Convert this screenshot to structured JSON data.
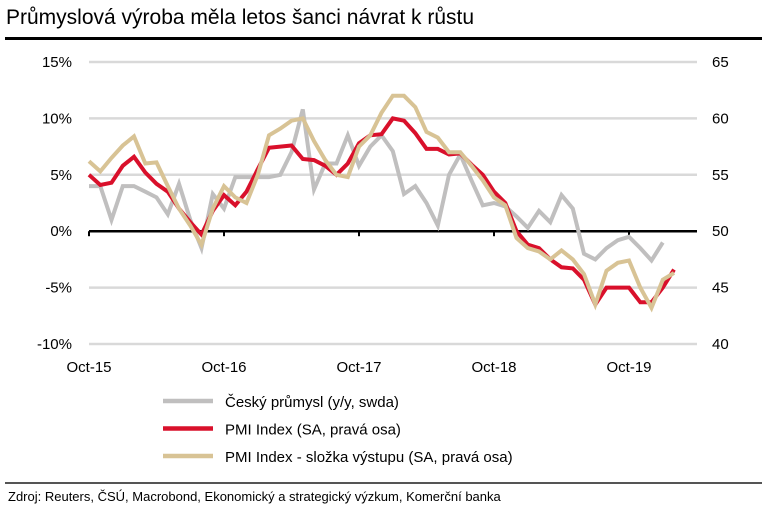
{
  "chart_data": {
    "type": "line",
    "title": "Průmyslová výroba měla letos šanci návrat k růstu",
    "x_start": "Oct-15",
    "x_frequency": "monthly",
    "x_tick_labels": [
      "Oct-15",
      "Oct-16",
      "Oct-17",
      "Oct-18",
      "Oct-19"
    ],
    "y_left": {
      "ticks": [
        15,
        10,
        5,
        0,
        -5,
        -10
      ],
      "tick_labels": [
        "15%",
        "10%",
        "5%",
        "0%",
        "-5%",
        "-10%"
      ],
      "range": [
        -10,
        15
      ]
    },
    "y_right": {
      "ticks": [
        65,
        60,
        55,
        50,
        45,
        40
      ],
      "tick_labels": [
        "65",
        "60",
        "55",
        "50",
        "45",
        "40"
      ],
      "range": [
        40,
        65
      ]
    },
    "grid": true,
    "legend_position": "bottom",
    "series": [
      {
        "name": "Český průmysl (y/y, swda)",
        "axis": "left",
        "color": "#c0bfbf",
        "values": [
          4.0,
          4.0,
          1.0,
          4.0,
          4.0,
          3.5,
          3.0,
          1.5,
          4.2,
          1.0,
          -1.5,
          3.3,
          2.0,
          4.8,
          4.8,
          4.8,
          4.8,
          5.0,
          7.0,
          10.8,
          3.7,
          6.0,
          6.0,
          8.5,
          5.8,
          7.5,
          8.5,
          7.1,
          3.3,
          4.0,
          2.5,
          0.5,
          5.0,
          6.8,
          4.5,
          2.3,
          2.5,
          2.2,
          1.3,
          0.3,
          1.8,
          0.8,
          3.2,
          2.0,
          -2.0,
          -2.5,
          -1.5,
          -0.8,
          -0.5,
          -1.5,
          -2.6,
          -1.0
        ]
      },
      {
        "name": "PMI Index (SA, pravá osa)",
        "axis": "right",
        "color": "#d9102b",
        "values": [
          55.0,
          54.1,
          54.3,
          55.8,
          56.6,
          55.2,
          54.2,
          53.5,
          52.0,
          50.8,
          49.7,
          51.8,
          53.2,
          52.3,
          53.5,
          55.5,
          57.4,
          57.5,
          57.6,
          56.4,
          56.3,
          55.8,
          55.0,
          56.0,
          57.8,
          58.5,
          58.6,
          60.0,
          59.8,
          58.7,
          57.3,
          57.3,
          56.8,
          56.9,
          55.9,
          55.0,
          53.5,
          52.5,
          50.0,
          48.8,
          48.5,
          47.5,
          46.8,
          46.7,
          45.7,
          43.5,
          45.0,
          45.0,
          45.0,
          43.7,
          43.7,
          45.0,
          46.6
        ]
      },
      {
        "name": "PMI Index - složka výstupu (SA, pravá osa)",
        "axis": "right",
        "color": "#d8c395",
        "values": [
          56.2,
          55.3,
          56.5,
          57.6,
          58.4,
          56.0,
          56.1,
          54.0,
          52.0,
          50.5,
          48.8,
          52.0,
          54.0,
          53.0,
          52.5,
          55.0,
          58.5,
          59.1,
          59.8,
          60.0,
          58.0,
          56.3,
          55.0,
          54.8,
          57.5,
          58.5,
          60.5,
          62.0,
          62.0,
          61.0,
          58.8,
          58.3,
          57.0,
          57.0,
          55.8,
          54.5,
          53.0,
          52.3,
          49.4,
          48.5,
          48.2,
          47.5,
          48.3,
          47.5,
          46.2,
          43.5,
          46.5,
          47.2,
          47.4,
          45.0,
          43.2,
          45.7,
          46.3
        ]
      }
    ]
  },
  "source": "Zdroj: Reuters, ČSÚ, Macrobond, Ekonomický a strategický výzkum, Komerční banka"
}
